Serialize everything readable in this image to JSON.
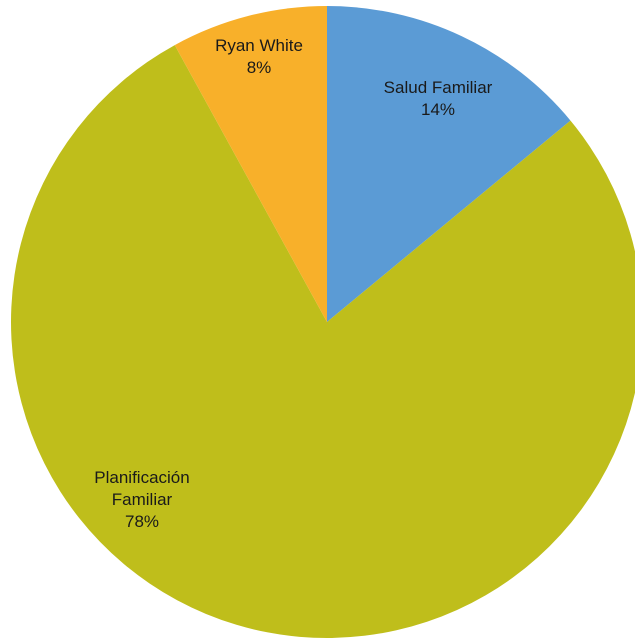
{
  "chart_data": {
    "type": "pie",
    "title": "",
    "slices": [
      {
        "label_lines": [
          "Salud Familiar"
        ],
        "percent_label": "14%",
        "value": 14,
        "color": "#5b9bd5"
      },
      {
        "label_lines": [
          "Planificación",
          "Familiar"
        ],
        "percent_label": "78%",
        "value": 78,
        "color": "#bfbe1b"
      },
      {
        "label_lines": [
          "Ryan White"
        ],
        "percent_label": "8%",
        "value": 8,
        "color": "#f8b02a"
      }
    ]
  }
}
